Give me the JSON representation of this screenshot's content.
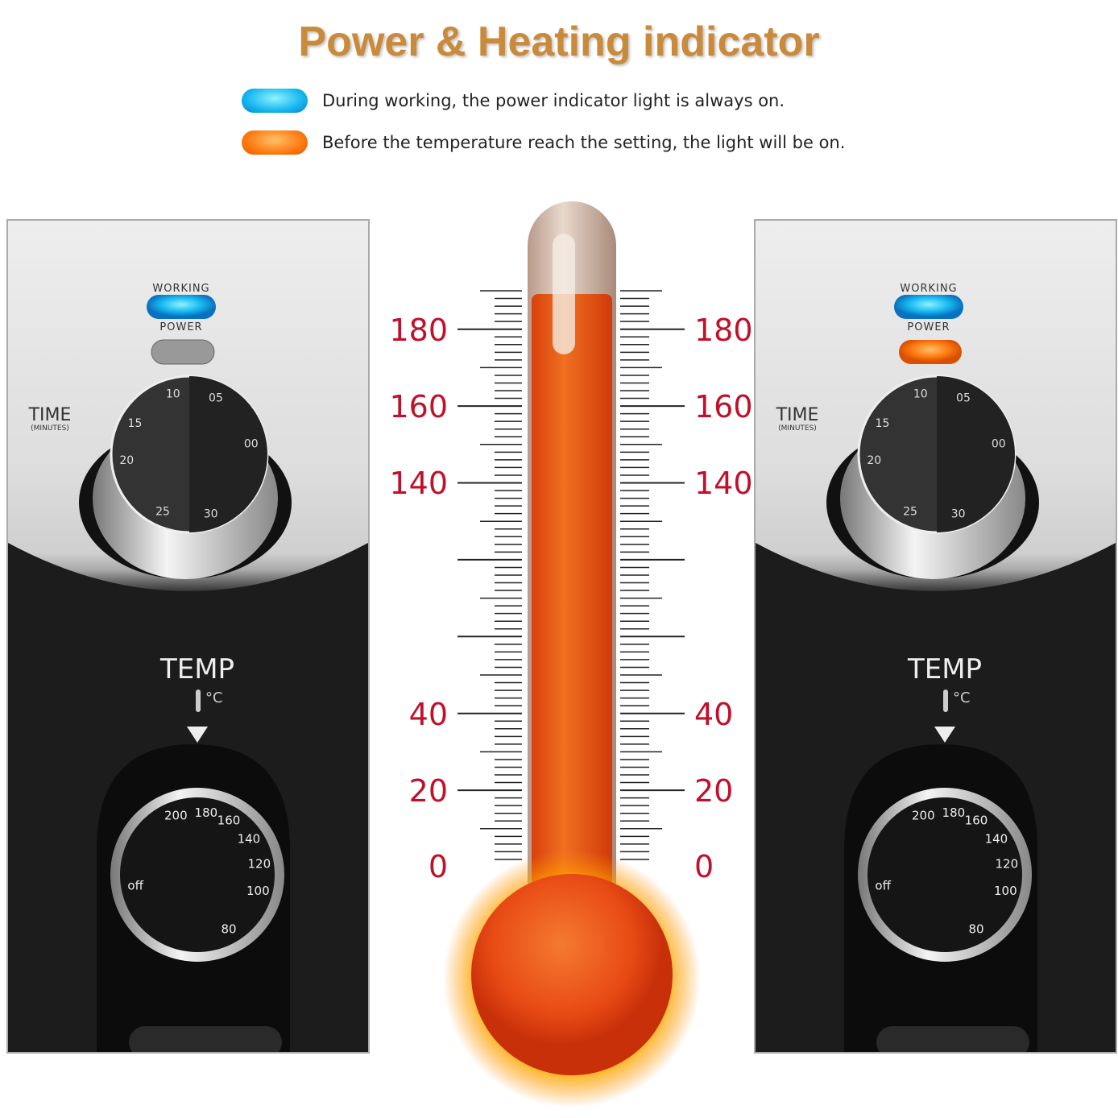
{
  "title": "Power & Heating indicator",
  "legend": [
    {
      "color": "#16b7ef",
      "text": "During working, the power indicator light is always on."
    },
    {
      "color": "#ff7a12",
      "text": "Before the temperature reach the setting, the light will be on."
    }
  ],
  "panel": {
    "working": "WORKING",
    "power": "POWER",
    "time": "TIME",
    "minutes": "(MINUTES)",
    "temp": "TEMP",
    "celsius": "°C",
    "time_dial": [
      "20",
      "15",
      "10",
      "05",
      "00",
      "30",
      "25"
    ],
    "temp_dial": [
      "200",
      "180",
      "160",
      "140",
      "120",
      "100",
      "80",
      "off"
    ]
  },
  "panels": [
    {
      "heating_light": "off"
    },
    {
      "heating_light": "on",
      "heating_color": "#ff7a12"
    }
  ],
  "thermometer": {
    "labels": [
      "180",
      "160",
      "140",
      "40",
      "20",
      "0"
    ],
    "fill_color": "#e8501a",
    "label_color": "#c0102a"
  }
}
